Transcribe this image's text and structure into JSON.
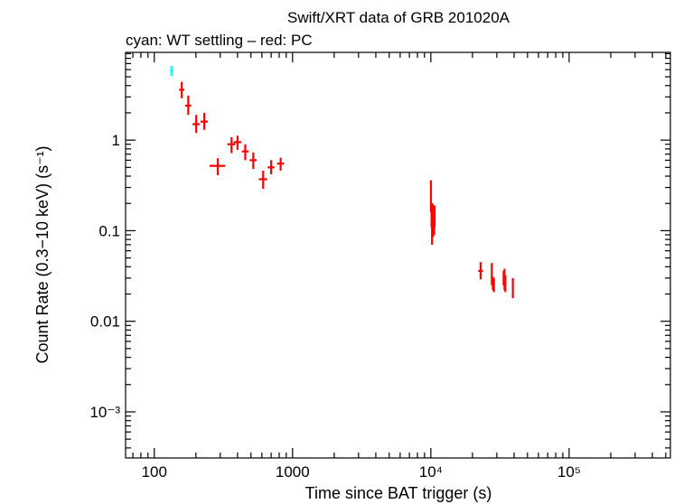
{
  "chart_data": {
    "type": "scatter",
    "title": "Swift/XRT data of GRB 201020A",
    "subtitle": "cyan: WT settling – red: PC",
    "xlabel": "Time since BAT trigger (s)",
    "ylabel": "Count Rate (0.3−10 keV) (s⁻¹)",
    "xscale": "log",
    "yscale": "log",
    "xlim": [
      62,
      540000
    ],
    "ylim": [
      0.00031,
      9.3
    ],
    "x_ticks": [
      {
        "value": 100,
        "label": "100"
      },
      {
        "value": 1000,
        "label": "1000"
      },
      {
        "value": 10000,
        "label": "10⁴"
      },
      {
        "value": 100000,
        "label": "10⁵"
      }
    ],
    "y_ticks": [
      {
        "value": 1,
        "label": "1"
      },
      {
        "value": 0.1,
        "label": "0.1"
      },
      {
        "value": 0.01,
        "label": "0.01"
      },
      {
        "value": 0.001,
        "label": "10⁻³"
      }
    ],
    "series": [
      {
        "name": "WT settling",
        "color": "#00ffff",
        "points": [
          {
            "x": 133,
            "xlo": 130,
            "xhi": 137,
            "y": 5.9,
            "ylo": 5.1,
            "yhi": 6.6
          }
        ]
      },
      {
        "name": "PC",
        "color": "#ff0000",
        "points": [
          {
            "x": 158,
            "xlo": 151,
            "xhi": 165,
            "y": 3.6,
            "ylo": 2.9,
            "yhi": 4.4
          },
          {
            "x": 176,
            "xlo": 167,
            "xhi": 185,
            "y": 2.4,
            "ylo": 1.9,
            "yhi": 3.1
          },
          {
            "x": 201,
            "xlo": 189,
            "xhi": 213,
            "y": 1.5,
            "ylo": 1.2,
            "yhi": 1.9
          },
          {
            "x": 230,
            "xlo": 216,
            "xhi": 244,
            "y": 1.6,
            "ylo": 1.3,
            "yhi": 2.0
          },
          {
            "x": 288,
            "xlo": 251,
            "xhi": 326,
            "y": 0.52,
            "ylo": 0.41,
            "yhi": 0.63
          },
          {
            "x": 362,
            "xlo": 338,
            "xhi": 386,
            "y": 0.9,
            "ylo": 0.72,
            "yhi": 1.08
          },
          {
            "x": 400,
            "xlo": 375,
            "xhi": 425,
            "y": 0.95,
            "ylo": 0.78,
            "yhi": 1.12
          },
          {
            "x": 455,
            "xlo": 430,
            "xhi": 480,
            "y": 0.75,
            "ylo": 0.6,
            "yhi": 0.9
          },
          {
            "x": 520,
            "xlo": 490,
            "xhi": 550,
            "y": 0.6,
            "ylo": 0.48,
            "yhi": 0.73
          },
          {
            "x": 613,
            "xlo": 570,
            "xhi": 655,
            "y": 0.37,
            "ylo": 0.29,
            "yhi": 0.46
          },
          {
            "x": 700,
            "xlo": 660,
            "xhi": 740,
            "y": 0.5,
            "ylo": 0.42,
            "yhi": 0.6
          },
          {
            "x": 820,
            "xlo": 772,
            "xhi": 868,
            "y": 0.55,
            "ylo": 0.46,
            "yhi": 0.64
          },
          {
            "x": 10020,
            "xlo": 9960,
            "xhi": 10080,
            "y": 0.22,
            "ylo": 0.16,
            "yhi": 0.36
          },
          {
            "x": 10120,
            "xlo": 10080,
            "xhi": 10160,
            "y": 0.15,
            "ylo": 0.11,
            "yhi": 0.2
          },
          {
            "x": 10200,
            "xlo": 10160,
            "xhi": 10240,
            "y": 0.13,
            "ylo": 0.07,
            "yhi": 0.19
          },
          {
            "x": 10290,
            "xlo": 10250,
            "xhi": 10330,
            "y": 0.16,
            "ylo": 0.12,
            "yhi": 0.2
          },
          {
            "x": 10380,
            "xlo": 10340,
            "xhi": 10420,
            "y": 0.12,
            "ylo": 0.085,
            "yhi": 0.16
          },
          {
            "x": 10470,
            "xlo": 10430,
            "xhi": 10510,
            "y": 0.14,
            "ylo": 0.1,
            "yhi": 0.19
          },
          {
            "x": 10560,
            "xlo": 10520,
            "xhi": 10600,
            "y": 0.13,
            "ylo": 0.09,
            "yhi": 0.18
          },
          {
            "x": 10650,
            "xlo": 10610,
            "xhi": 10690,
            "y": 0.15,
            "ylo": 0.11,
            "yhi": 0.19
          },
          {
            "x": 22900,
            "xlo": 22000,
            "xhi": 23800,
            "y": 0.036,
            "ylo": 0.029,
            "yhi": 0.045
          },
          {
            "x": 27600,
            "xlo": 27350,
            "xhi": 27850,
            "y": 0.032,
            "ylo": 0.025,
            "yhi": 0.044
          },
          {
            "x": 28100,
            "xlo": 27850,
            "xhi": 28350,
            "y": 0.026,
            "ylo": 0.022,
            "yhi": 0.031
          },
          {
            "x": 28600,
            "xlo": 28350,
            "xhi": 28850,
            "y": 0.025,
            "ylo": 0.021,
            "yhi": 0.03
          },
          {
            "x": 33600,
            "xlo": 33300,
            "xhi": 33900,
            "y": 0.03,
            "ylo": 0.025,
            "yhi": 0.036
          },
          {
            "x": 34100,
            "xlo": 33900,
            "xhi": 34300,
            "y": 0.028,
            "ylo": 0.022,
            "yhi": 0.038
          },
          {
            "x": 34600,
            "xlo": 34350,
            "xhi": 34850,
            "y": 0.026,
            "ylo": 0.021,
            "yhi": 0.032
          },
          {
            "x": 39200,
            "xlo": 38700,
            "xhi": 39700,
            "y": 0.023,
            "ylo": 0.018,
            "yhi": 0.03
          }
        ]
      }
    ]
  }
}
